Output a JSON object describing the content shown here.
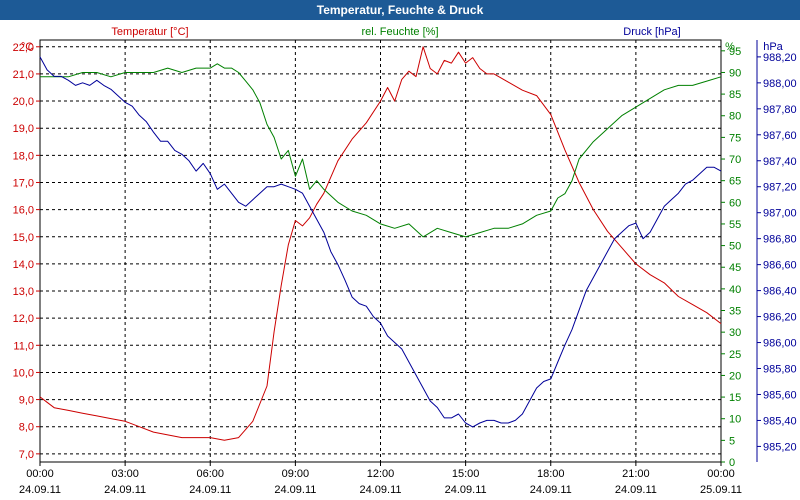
{
  "chart_data": {
    "type": "line",
    "title": "Temperatur, Feuchte & Druck",
    "x_ticks": [
      {
        "time": "00:00",
        "date": "24.09.11"
      },
      {
        "time": "03:00",
        "date": "24.09.11"
      },
      {
        "time": "06:00",
        "date": "24.09.11"
      },
      {
        "time": "09:00",
        "date": "24.09.11"
      },
      {
        "time": "12:00",
        "date": "24.09.11"
      },
      {
        "time": "15:00",
        "date": "24.09.11"
      },
      {
        "time": "18:00",
        "date": "24.09.11"
      },
      {
        "time": "21:00",
        "date": "24.09.11"
      },
      {
        "time": "00:00",
        "date": "25.09.11"
      }
    ],
    "x_range_hours": [
      0,
      24
    ],
    "axes": {
      "temperature": {
        "label": "Temperatur [°C]",
        "unit": "°C",
        "color": "#cc0000",
        "min": 6.7,
        "max": 22.25,
        "ticks": [
          "7,0",
          "8,0",
          "9,0",
          "10,0",
          "11,0",
          "12,0",
          "13,0",
          "14,0",
          "15,0",
          "16,0",
          "17,0",
          "18,0",
          "19,0",
          "20,0",
          "21,0",
          "22,0"
        ]
      },
      "humidity": {
        "label": "rel. Feuchte [%]",
        "unit": "%",
        "color": "#008000",
        "min": 0,
        "max": 97.5,
        "ticks": [
          "0",
          "5",
          "10",
          "15",
          "20",
          "25",
          "30",
          "35",
          "40",
          "45",
          "50",
          "55",
          "60",
          "65",
          "70",
          "75",
          "80",
          "85",
          "90",
          "95"
        ]
      },
      "pressure": {
        "label": "Druck [hPa]",
        "unit": "hPa",
        "color": "#000099",
        "min": 985.08,
        "max": 988.33,
        "ticks": [
          "985,20",
          "985,40",
          "985,60",
          "985,80",
          "986,00",
          "986,20",
          "986,40",
          "986,60",
          "986,80",
          "987,00",
          "987,20",
          "987,40",
          "987,60",
          "987,80",
          "988,00",
          "988,20"
        ]
      }
    },
    "series": [
      {
        "name": "Temperatur",
        "axis": "temperature",
        "color": "#cc0000",
        "x": [
          0,
          0.25,
          0.5,
          1,
          1.5,
          2,
          2.5,
          3,
          3.5,
          4,
          4.5,
          5,
          5.5,
          6,
          6.5,
          7,
          7.5,
          8,
          8.25,
          8.5,
          8.75,
          9,
          9.25,
          9.5,
          9.75,
          10,
          10.5,
          11,
          11.5,
          12,
          12.25,
          12.5,
          12.75,
          13,
          13.25,
          13.5,
          13.75,
          14,
          14.25,
          14.5,
          14.75,
          15,
          15.25,
          15.5,
          15.75,
          16,
          16.5,
          17,
          17.5,
          18,
          18.5,
          19,
          19.5,
          20,
          20.5,
          21,
          21.5,
          22,
          22.5,
          23,
          23.5,
          24
        ],
        "values": [
          9.1,
          8.9,
          8.7,
          8.6,
          8.5,
          8.4,
          8.3,
          8.2,
          8.0,
          7.8,
          7.7,
          7.6,
          7.6,
          7.6,
          7.5,
          7.6,
          8.2,
          9.5,
          11.5,
          13.2,
          14.7,
          15.6,
          15.4,
          15.7,
          16.2,
          16.6,
          17.8,
          18.6,
          19.2,
          20.0,
          20.5,
          20.0,
          20.8,
          21.1,
          20.9,
          22.0,
          21.2,
          21.0,
          21.5,
          21.4,
          21.8,
          21.4,
          21.6,
          21.2,
          21.0,
          21.0,
          20.7,
          20.4,
          20.2,
          19.5,
          18.2,
          17.0,
          16.0,
          15.2,
          14.6,
          14.0,
          13.6,
          13.3,
          12.8,
          12.5,
          12.2,
          11.8
        ]
      },
      {
        "name": "rel. Feuchte",
        "axis": "humidity",
        "color": "#008000",
        "x": [
          0,
          0.5,
          1,
          1.5,
          2,
          2.5,
          3,
          3.5,
          4,
          4.5,
          5,
          5.5,
          6,
          6.25,
          6.5,
          6.75,
          7,
          7.25,
          7.5,
          7.75,
          8,
          8.25,
          8.5,
          8.75,
          9,
          9.25,
          9.5,
          9.75,
          10,
          10.5,
          11,
          11.5,
          12,
          12.5,
          13,
          13.5,
          14,
          14.5,
          15,
          15.5,
          16,
          16.5,
          17,
          17.5,
          18,
          18.25,
          18.5,
          18.75,
          19,
          19.5,
          20,
          20.5,
          21,
          21.5,
          22,
          22.5,
          23,
          23.5,
          24
        ],
        "values": [
          89,
          89,
          89,
          90,
          90,
          89,
          90,
          90,
          90,
          91,
          90,
          91,
          91,
          92,
          91,
          91,
          90,
          88,
          86,
          83,
          78,
          75,
          70,
          72,
          66,
          70,
          63,
          65,
          63,
          60,
          58,
          57,
          55,
          54,
          55,
          52,
          54,
          53,
          52,
          53,
          54,
          54,
          55,
          57,
          58,
          61,
          62,
          65,
          70,
          74,
          77,
          80,
          82,
          84,
          86,
          87,
          87,
          88,
          89
        ]
      },
      {
        "name": "Druck",
        "axis": "pressure",
        "color": "#000099",
        "x": [
          0,
          0.25,
          0.5,
          0.75,
          1,
          1.25,
          1.5,
          1.75,
          2,
          2.25,
          2.5,
          2.75,
          3,
          3.25,
          3.5,
          3.75,
          4,
          4.25,
          4.5,
          4.75,
          5,
          5.25,
          5.5,
          5.75,
          6,
          6.25,
          6.5,
          6.75,
          7,
          7.25,
          7.5,
          7.75,
          8,
          8.25,
          8.5,
          8.75,
          9,
          9.25,
          9.5,
          9.75,
          10,
          10.25,
          10.5,
          10.75,
          11,
          11.25,
          11.5,
          11.75,
          12,
          12.25,
          12.5,
          12.75,
          13,
          13.25,
          13.5,
          13.75,
          14,
          14.25,
          14.5,
          14.75,
          15,
          15.25,
          15.5,
          15.75,
          16,
          16.25,
          16.5,
          16.75,
          17,
          17.25,
          17.5,
          17.75,
          18,
          18.25,
          18.5,
          18.75,
          19,
          19.25,
          19.5,
          19.75,
          20,
          20.25,
          20.5,
          20.75,
          21,
          21.25,
          21.5,
          21.75,
          22,
          22.25,
          22.5,
          22.75,
          23,
          23.25,
          23.5,
          23.75,
          24
        ],
        "values": [
          988.2,
          988.1,
          988.05,
          988.05,
          988.02,
          987.98,
          988.0,
          987.98,
          988.02,
          987.98,
          987.95,
          987.9,
          987.85,
          987.82,
          987.75,
          987.7,
          987.62,
          987.55,
          987.55,
          987.48,
          987.45,
          987.4,
          987.32,
          987.38,
          987.3,
          987.18,
          987.22,
          987.15,
          987.08,
          987.05,
          987.1,
          987.15,
          987.2,
          987.2,
          987.22,
          987.2,
          987.18,
          987.15,
          987.05,
          986.95,
          986.85,
          986.7,
          986.6,
          986.48,
          986.35,
          986.3,
          986.28,
          986.2,
          986.15,
          986.05,
          986.0,
          985.95,
          985.85,
          985.75,
          985.65,
          985.55,
          985.5,
          985.42,
          985.42,
          985.45,
          985.38,
          985.35,
          985.38,
          985.4,
          985.4,
          985.38,
          985.38,
          985.4,
          985.45,
          985.55,
          985.65,
          985.7,
          985.72,
          985.85,
          985.98,
          986.1,
          986.25,
          986.4,
          986.5,
          986.6,
          986.7,
          986.8,
          986.85,
          986.9,
          986.92,
          986.8,
          986.85,
          986.95,
          987.05,
          987.1,
          987.15,
          987.22,
          987.25,
          987.3,
          987.35,
          987.35,
          987.32
        ]
      }
    ],
    "grid": true
  }
}
